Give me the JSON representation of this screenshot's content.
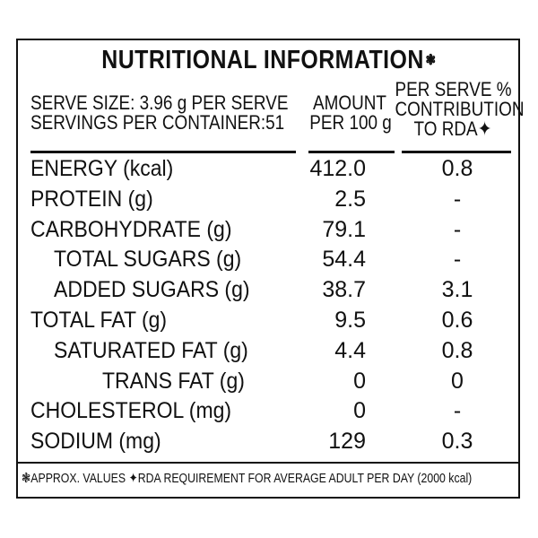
{
  "label": {
    "title": "NUTRITIONAL INFORMATION",
    "title_mark": "❃",
    "serve_size": "SERVE SIZE: 3.96 g PER SERVE",
    "servings": "SERVINGS PER CONTAINER:51",
    "col_amount": [
      "AMOUNT",
      "PER 100 g"
    ],
    "col_rda": [
      "PER SERVE %",
      "CONTRIBUTION",
      "TO RDA✦"
    ],
    "rows": [
      {
        "label": "ENERGY (kcal)",
        "per100": "412.0",
        "rda": "0.8",
        "indent": 0
      },
      {
        "label": "PROTEIN (g)",
        "per100": "2.5",
        "rda": "-",
        "indent": 0
      },
      {
        "label": "CARBOHYDRATE (g)",
        "per100": "79.1",
        "rda": "-",
        "indent": 0
      },
      {
        "label": "TOTAL SUGARS (g)",
        "per100": "54.4",
        "rda": "-",
        "indent": 1
      },
      {
        "label": "ADDED SUGARS (g)",
        "per100": "38.7",
        "rda": "3.1",
        "indent": 1
      },
      {
        "label": "TOTAL FAT (g)",
        "per100": "9.5",
        "rda": "0.6",
        "indent": 0
      },
      {
        "label": "SATURATED FAT (g)",
        "per100": "4.4",
        "rda": "0.8",
        "indent": 1
      },
      {
        "label": "TRANS FAT (g)",
        "per100": "0",
        "rda": "0",
        "indent": 2
      },
      {
        "label": "CHOLESTEROL (mg)",
        "per100": "0",
        "rda": "-",
        "indent": 0
      },
      {
        "label": "SODIUM (mg)",
        "per100": "129",
        "rda": "0.3",
        "indent": 0
      }
    ],
    "footer": "❃APPROX. VALUES  ✦RDA REQUIREMENT FOR AVERAGE ADULT PER DAY (2000 kcal)"
  }
}
